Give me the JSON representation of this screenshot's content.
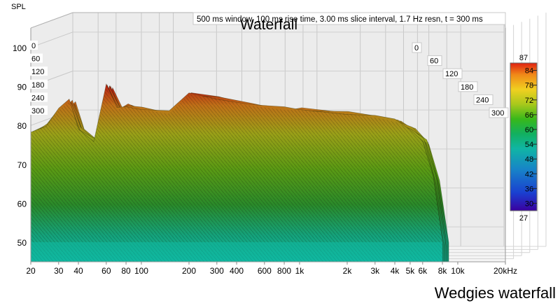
{
  "chart_data": {
    "type": "waterfall",
    "title": "Waterfall",
    "subtitle": "500 ms window, 100 ms rise time, 3.00 ms slice interval, 1.7 Hz resn, t = 300 ms",
    "ylabel": "SPL",
    "caption": "Wedgies waterfall",
    "x_scale": "log",
    "xlim": [
      20,
      20000
    ],
    "ylim": [
      45,
      105
    ],
    "x_ticks": [
      {
        "v": 20,
        "label": "20"
      },
      {
        "v": 30,
        "label": "30"
      },
      {
        "v": 40,
        "label": "40"
      },
      {
        "v": 60,
        "label": "60"
      },
      {
        "v": 80,
        "label": "80"
      },
      {
        "v": 100,
        "label": "100"
      },
      {
        "v": 200,
        "label": "200"
      },
      {
        "v": 300,
        "label": "300"
      },
      {
        "v": 400,
        "label": "400"
      },
      {
        "v": 600,
        "label": "600"
      },
      {
        "v": 800,
        "label": "800"
      },
      {
        "v": 1000,
        "label": "1k"
      },
      {
        "v": 2000,
        "label": "2k"
      },
      {
        "v": 3000,
        "label": "3k"
      },
      {
        "v": 4000,
        "label": "4k"
      },
      {
        "v": 5000,
        "label": "5k"
      },
      {
        "v": 6000,
        "label": "6k"
      },
      {
        "v": 8000,
        "label": "8k"
      },
      {
        "v": 10000,
        "label": "10k"
      },
      {
        "v": 20000,
        "label": "20kHz"
      }
    ],
    "y_ticks": [
      50,
      60,
      70,
      80,
      90,
      100
    ],
    "time_ticks_ms": [
      0,
      60,
      120,
      180,
      240,
      300
    ],
    "colorbar": {
      "min": 27,
      "max": 87,
      "ticks": [
        30,
        36,
        42,
        48,
        54,
        60,
        66,
        72,
        78,
        84
      ],
      "colors": [
        "#3a00a0",
        "#1a3fd0",
        "#1784c8",
        "#10b5a4",
        "#12b060",
        "#38b81a",
        "#a8c81c",
        "#f0d020",
        "#f08a18",
        "#e02010"
      ]
    },
    "front_slice_spl": [
      {
        "f": 20,
        "spl": 78
      },
      {
        "f": 25,
        "spl": 80
      },
      {
        "f": 30,
        "spl": 84
      },
      {
        "f": 35,
        "spl": 86
      },
      {
        "f": 40,
        "spl": 79
      },
      {
        "f": 50,
        "spl": 76
      },
      {
        "f": 60,
        "spl": 90
      },
      {
        "f": 70,
        "spl": 84
      },
      {
        "f": 80,
        "spl": 85
      },
      {
        "f": 100,
        "spl": 84
      },
      {
        "f": 150,
        "spl": 83
      },
      {
        "f": 200,
        "spl": 88
      },
      {
        "f": 300,
        "spl": 87
      },
      {
        "f": 500,
        "spl": 85
      },
      {
        "f": 800,
        "spl": 84
      },
      {
        "f": 1000,
        "spl": 84
      },
      {
        "f": 2000,
        "spl": 83
      },
      {
        "f": 3000,
        "spl": 82
      },
      {
        "f": 4000,
        "spl": 81
      },
      {
        "f": 5000,
        "spl": 79
      },
      {
        "f": 6000,
        "spl": 76
      },
      {
        "f": 7000,
        "spl": 66
      },
      {
        "f": 8000,
        "spl": 50
      }
    ]
  }
}
